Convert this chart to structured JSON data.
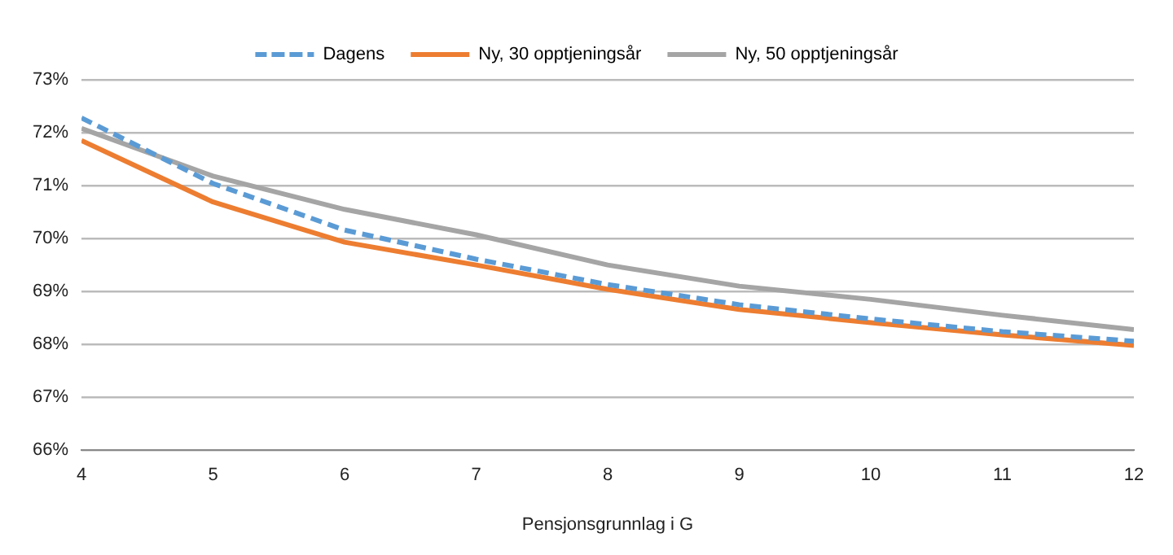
{
  "chart_data": {
    "type": "line",
    "xlabel": "Pensjonsgrunnlag i G",
    "x": [
      4,
      5,
      6,
      7,
      8,
      9,
      10,
      11,
      12
    ],
    "series": [
      {
        "name": "Dagens",
        "color": "#5b9bd5",
        "line_style": "dashed",
        "values": [
          72.28,
          71.04,
          70.16,
          69.61,
          69.13,
          68.75,
          68.48,
          68.24,
          68.06
        ]
      },
      {
        "name": "Ny, 30 opptjeningsår",
        "color": "#ed7d31",
        "line_style": "solid",
        "values": [
          71.85,
          70.69,
          69.93,
          69.5,
          69.04,
          68.66,
          68.41,
          68.18,
          67.98
        ]
      },
      {
        "name": "Ny, 50 opptjeningsår",
        "color": "#a5a5a5",
        "line_style": "solid",
        "values": [
          72.08,
          71.18,
          70.55,
          70.07,
          69.5,
          69.1,
          68.85,
          68.55,
          68.28
        ]
      }
    ],
    "xlim": [
      4,
      12
    ],
    "xticks": [
      4,
      5,
      6,
      7,
      8,
      9,
      10,
      11,
      12
    ],
    "ylim": [
      66,
      73
    ],
    "yticks": [
      {
        "value": 66,
        "label": "66%"
      },
      {
        "value": 67,
        "label": "67%"
      },
      {
        "value": 68,
        "label": "68%"
      },
      {
        "value": 69,
        "label": "69%"
      },
      {
        "value": 70,
        "label": "70%"
      },
      {
        "value": 71,
        "label": "71%"
      },
      {
        "value": 72,
        "label": "72%"
      },
      {
        "value": 73,
        "label": "73%"
      }
    ],
    "grid": "y",
    "legend": "top",
    "marker": "none"
  }
}
